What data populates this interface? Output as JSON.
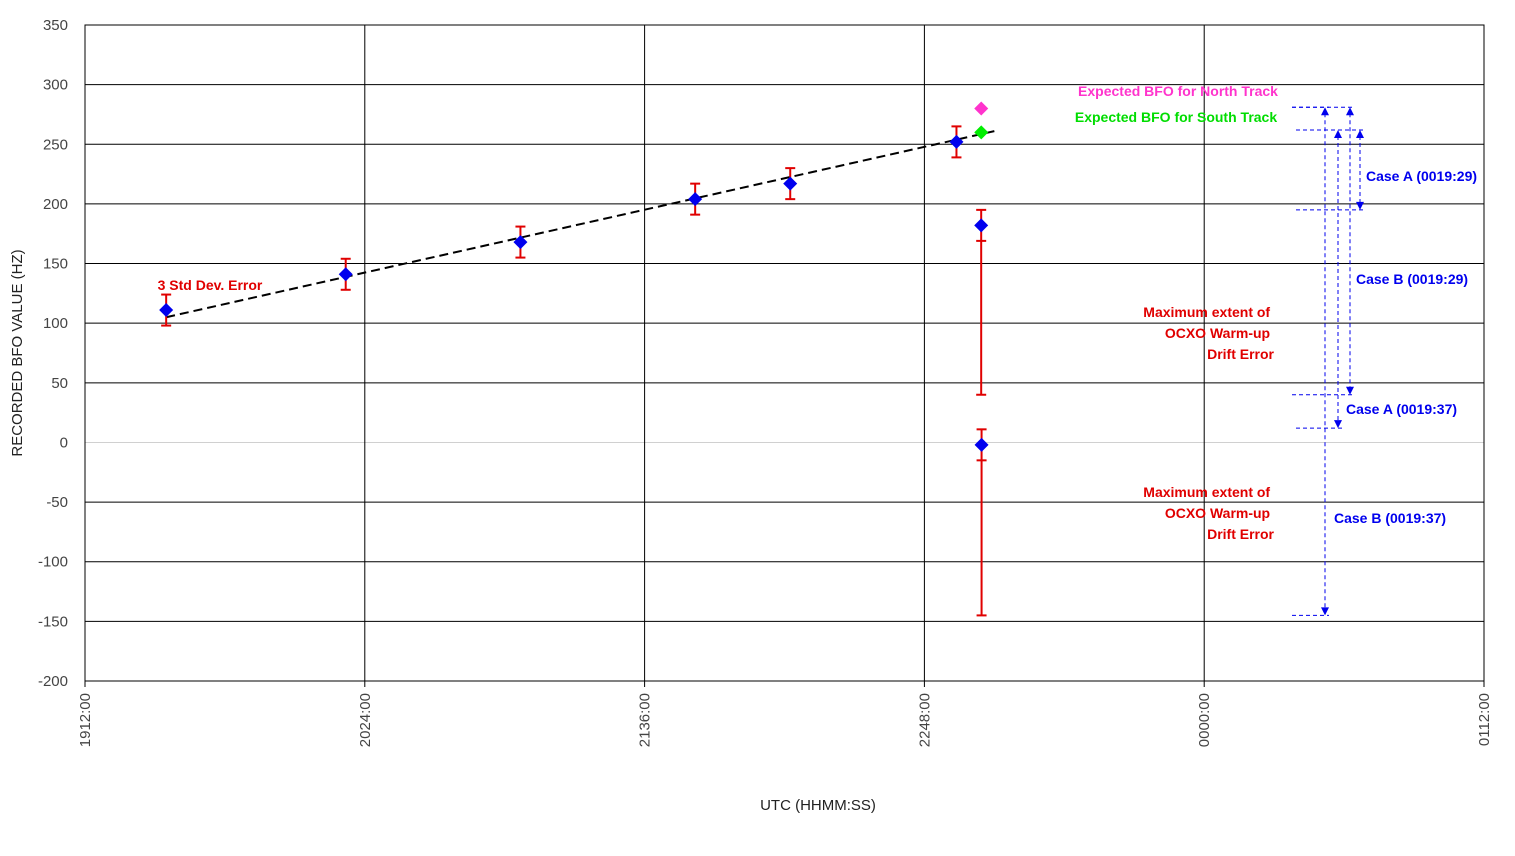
{
  "chart_data": {
    "type": "scatter",
    "title": "",
    "xlabel": "UTC (HHMM:SS)",
    "ylabel": "RECORDED BFO VALUE (HZ)",
    "ylim": [
      -200,
      350
    ],
    "y_ticks": [
      "350",
      "300",
      "250",
      "200",
      "150",
      "100",
      "50",
      "0",
      "-50",
      "-100",
      "-150",
      "-200"
    ],
    "x_ticks": [
      "1912:00",
      "2024:00",
      "2136:00",
      "2248:00",
      "0000:00",
      "0112:00"
    ],
    "xlim_minutes": [
      0,
      480
    ],
    "grid": true,
    "marker_color": "#0000ee",
    "errorbar_color": "#e00000",
    "trend_color": "#000000",
    "points": [
      {
        "x": "1939:51",
        "y": 111,
        "err": 13
      },
      {
        "x": "2041:27",
        "y": 141,
        "err": 13
      },
      {
        "x": "2141:24",
        "y": 168,
        "err": 13
      },
      {
        "x": "2241:21",
        "y": 204,
        "err": 13
      },
      {
        "x": "2313:58",
        "y": 217,
        "err": 13
      },
      {
        "x": "0011:00",
        "y": 252,
        "err": 13
      },
      {
        "x": "0019:29",
        "y": 182,
        "err": 13,
        "drift_low": 40
      },
      {
        "x": "0019:37",
        "y": -2,
        "err": 13,
        "drift_low": -145
      }
    ],
    "trend_line": {
      "x": [
        "1939:51",
        "0024:00"
      ],
      "y": [
        105,
        261
      ]
    },
    "expected": [
      {
        "label": "Expected BFO for North Track",
        "x": "0019:30",
        "y": 280,
        "color": "#ff33cc"
      },
      {
        "label": "Expected BFO for South Track",
        "x": "0019:30",
        "y": 260,
        "color": "#00ee00"
      }
    ],
    "annotations": [
      {
        "text": "3 Std Dev. Error",
        "color": "#e00000"
      },
      {
        "lines": [
          "Maximum extent of",
          "OCXO Warm-up",
          "Drift Error"
        ],
        "color": "#e00000"
      },
      {
        "lines": [
          "Maximum extent of",
          "OCXO Warm-up",
          "Drift Error"
        ],
        "color": "#e00000"
      },
      {
        "text": "Case A (0019:29)",
        "color": "#0000ee"
      },
      {
        "text": "Case B (0019:29)",
        "color": "#0000ee"
      },
      {
        "text": "Case A (0019:37)",
        "color": "#0000ee"
      },
      {
        "text": "Case B (0019:37)",
        "color": "#0000ee"
      }
    ],
    "case_arrows": [
      {
        "label": "Case A (0019:29)",
        "top": 262,
        "bottom": 195
      },
      {
        "label": "Case B (0019:29)",
        "top": 281,
        "bottom": 40
      },
      {
        "label": "Case A (0019:37)",
        "top": 262,
        "bottom": 12
      },
      {
        "label": "Case B (0019:37)",
        "top": 281,
        "bottom": -145
      }
    ]
  }
}
